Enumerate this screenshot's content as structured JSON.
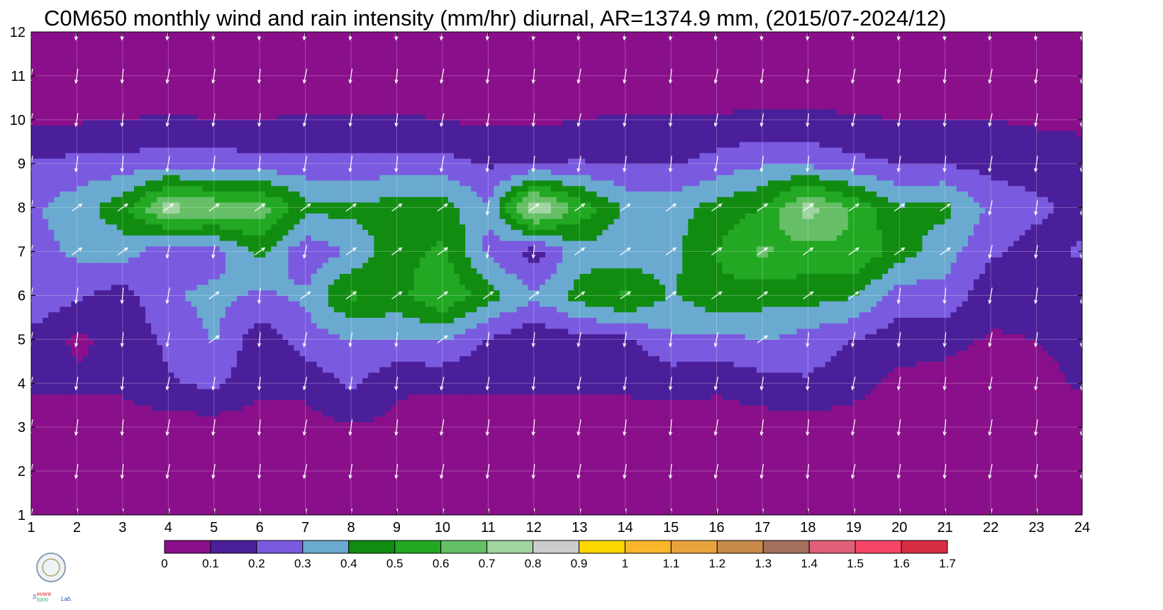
{
  "title": "C0M650 monthly wind and rain intensity (mm/hr) diurnal, AR=1374.9 mm, (2015/07-2024/12)",
  "chart_data": {
    "type": "heatmap",
    "title": "C0M650 monthly wind and rain intensity (mm/hr) diurnal, AR=1374.9 mm, (2015/07-2024/12)",
    "xlabel": "",
    "ylabel": "",
    "xlim": [
      1,
      24
    ],
    "ylim": [
      1,
      12
    ],
    "x_ticks": [
      "1",
      "2",
      "3",
      "4",
      "5",
      "6",
      "7",
      "8",
      "9",
      "10",
      "11",
      "12",
      "13",
      "14",
      "15",
      "16",
      "17",
      "18",
      "19",
      "20",
      "21",
      "22",
      "23",
      "24"
    ],
    "y_ticks": [
      "1",
      "2",
      "3",
      "4",
      "5",
      "6",
      "7",
      "8",
      "9",
      "10",
      "11",
      "12"
    ],
    "x": [
      1,
      2,
      3,
      4,
      5,
      6,
      7,
      8,
      9,
      10,
      11,
      12,
      13,
      14,
      15,
      16,
      17,
      18,
      19,
      20,
      21,
      22,
      23,
      24
    ],
    "y": [
      1,
      2,
      3,
      4,
      5,
      6,
      7,
      8,
      9,
      10,
      11,
      12
    ],
    "z": [
      [
        0.02,
        0.02,
        0.02,
        0.02,
        0.02,
        0.02,
        0.02,
        0.02,
        0.02,
        0.02,
        0.02,
        0.02,
        0.02,
        0.02,
        0.02,
        0.02,
        0.02,
        0.02,
        0.02,
        0.02,
        0.02,
        0.02,
        0.02,
        0.02
      ],
      [
        0.03,
        0.03,
        0.03,
        0.03,
        0.03,
        0.03,
        0.03,
        0.03,
        0.03,
        0.03,
        0.03,
        0.03,
        0.03,
        0.03,
        0.03,
        0.03,
        0.03,
        0.03,
        0.03,
        0.03,
        0.03,
        0.03,
        0.03,
        0.03
      ],
      [
        0.05,
        0.05,
        0.05,
        0.05,
        0.05,
        0.05,
        0.06,
        0.09,
        0.08,
        0.05,
        0.05,
        0.05,
        0.05,
        0.05,
        0.05,
        0.05,
        0.05,
        0.05,
        0.05,
        0.05,
        0.05,
        0.05,
        0.05,
        0.05
      ],
      [
        0.12,
        0.12,
        0.12,
        0.19,
        0.22,
        0.13,
        0.13,
        0.22,
        0.11,
        0.12,
        0.12,
        0.12,
        0.12,
        0.12,
        0.14,
        0.12,
        0.16,
        0.19,
        0.14,
        0.07,
        0.06,
        0.06,
        0.08,
        0.11
      ],
      [
        0.17,
        0.08,
        0.13,
        0.22,
        0.31,
        0.13,
        0.25,
        0.3,
        0.3,
        0.31,
        0.19,
        0.12,
        0.16,
        0.18,
        0.28,
        0.26,
        0.31,
        0.25,
        0.2,
        0.15,
        0.13,
        0.09,
        0.1,
        0.12
      ],
      [
        0.28,
        0.22,
        0.15,
        0.29,
        0.33,
        0.28,
        0.32,
        0.52,
        0.46,
        0.6,
        0.44,
        0.32,
        0.44,
        0.52,
        0.39,
        0.48,
        0.44,
        0.45,
        0.41,
        0.24,
        0.27,
        0.13,
        0.14,
        0.12
      ],
      [
        0.26,
        0.32,
        0.35,
        0.22,
        0.25,
        0.43,
        0.22,
        0.32,
        0.46,
        0.52,
        0.28,
        0.15,
        0.36,
        0.33,
        0.37,
        0.5,
        0.62,
        0.55,
        0.6,
        0.45,
        0.34,
        0.22,
        0.15,
        0.22
      ],
      [
        0.28,
        0.36,
        0.46,
        0.75,
        0.68,
        0.66,
        0.44,
        0.42,
        0.45,
        0.46,
        0.3,
        0.82,
        0.57,
        0.38,
        0.35,
        0.44,
        0.5,
        0.75,
        0.58,
        0.41,
        0.43,
        0.28,
        0.23,
        0.15
      ],
      [
        0.21,
        0.23,
        0.24,
        0.25,
        0.25,
        0.24,
        0.23,
        0.23,
        0.24,
        0.24,
        0.19,
        0.2,
        0.21,
        0.19,
        0.19,
        0.24,
        0.29,
        0.28,
        0.23,
        0.2,
        0.2,
        0.16,
        0.14,
        0.12
      ],
      [
        0.09,
        0.09,
        0.1,
        0.11,
        0.1,
        0.1,
        0.11,
        0.11,
        0.11,
        0.1,
        0.08,
        0.08,
        0.1,
        0.11,
        0.11,
        0.11,
        0.12,
        0.12,
        0.11,
        0.1,
        0.1,
        0.1,
        0.09,
        0.09
      ],
      [
        0.04,
        0.04,
        0.04,
        0.04,
        0.04,
        0.04,
        0.04,
        0.04,
        0.04,
        0.04,
        0.04,
        0.04,
        0.04,
        0.04,
        0.04,
        0.04,
        0.04,
        0.04,
        0.04,
        0.04,
        0.04,
        0.04,
        0.04,
        0.04
      ],
      [
        0.03,
        0.03,
        0.03,
        0.03,
        0.03,
        0.03,
        0.03,
        0.03,
        0.03,
        0.03,
        0.03,
        0.03,
        0.03,
        0.03,
        0.03,
        0.03,
        0.03,
        0.03,
        0.03,
        0.03,
        0.03,
        0.03,
        0.03,
        0.03
      ]
    ],
    "wind_vectors": "white arrows at each hour/month grid point",
    "colorbar": {
      "levels": [
        "0",
        "0.1",
        "0.2",
        "0.3",
        "0.4",
        "0.5",
        "0.6",
        "0.7",
        "0.8",
        "0.9",
        "1",
        "1.1",
        "1.2",
        "1.3",
        "1.4",
        "1.5",
        "1.6",
        "1.7"
      ],
      "colors": [
        "#8a0f8a",
        "#4b1f9a",
        "#7a5be0",
        "#6aaad0",
        "#118c11",
        "#22a822",
        "#66bf66",
        "#a0d4a0",
        "#cccccc",
        "#ffd700",
        "#f9b62a",
        "#e8a43c",
        "#c88a4a",
        "#a2705c",
        "#e0607a",
        "#f54466",
        "#d62c44"
      ]
    },
    "contour_line_color": "#f2b233"
  }
}
